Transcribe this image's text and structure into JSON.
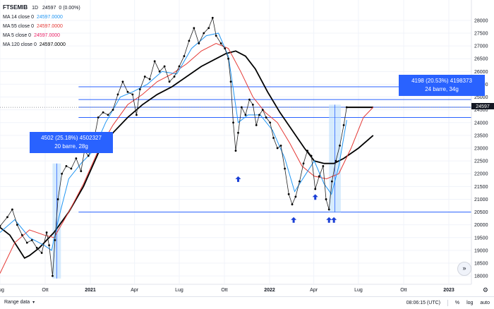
{
  "legend": {
    "symbol": "FTSEMIB",
    "interval": "1D",
    "price": "24597",
    "change": "0 (0.00%)",
    "items": [
      {
        "label": "MA 14 close 0",
        "value": "24597.0000",
        "color": "#2196f3"
      },
      {
        "label": "MA 55 close 0",
        "value": "24597.0000",
        "color": "#e53935"
      },
      {
        "label": "MA 5 close 0",
        "value": "24597.0000",
        "color": "#e91e63"
      },
      {
        "label": "MA 120 close 0",
        "value": "24597.0000",
        "color": "#000000"
      }
    ]
  },
  "measure_boxes": [
    {
      "line1": "4502 (25.18%) 4502327",
      "line2": "20 barre, 28g"
    },
    {
      "line1": "4198 (20.53%) 4198373",
      "line2": "24 barre, 34g"
    }
  ],
  "footer": {
    "range_label": "Range data",
    "time": "08:06:15 (UTC)",
    "percent": "%",
    "log": "log",
    "auto": "auto"
  },
  "chart_data": {
    "type": "line",
    "series_note_colors": {
      "price": "#000000",
      "ma14": "#2196f3",
      "ma55": "#e53935",
      "ma120": "#000000",
      "measure": "#2962ff"
    },
    "x_axis_ticks": [
      "Lug",
      "Ott",
      "2021",
      "Apr",
      "Lug",
      "Ott",
      "2022",
      "Apr",
      "Lug",
      "Ott",
      "2023"
    ],
    "y_axis_ticks": [
      "28000",
      "27500",
      "27000",
      "26500",
      "26000",
      "25500",
      "25000",
      "24500",
      "24000",
      "23500",
      "23000",
      "22500",
      "22000",
      "21500",
      "21000",
      "20500",
      "20000",
      "19500",
      "19000",
      "18500",
      "18000"
    ],
    "ylim": [
      17700,
      28300
    ],
    "x_range_days": [
      0,
      960
    ],
    "x_tick_days": [
      0,
      92,
      184,
      274,
      365,
      457,
      549,
      639,
      730,
      822,
      914
    ],
    "price": [
      [
        0,
        19950
      ],
      [
        15,
        20300
      ],
      [
        25,
        20600
      ],
      [
        35,
        20000
      ],
      [
        45,
        19600
      ],
      [
        55,
        19300
      ],
      [
        65,
        19400
      ],
      [
        75,
        19100
      ],
      [
        85,
        18900
      ],
      [
        95,
        19700
      ],
      [
        100,
        19200
      ],
      [
        107,
        18000
      ],
      [
        112,
        19400
      ],
      [
        118,
        21000
      ],
      [
        126,
        22000
      ],
      [
        135,
        22300
      ],
      [
        145,
        22200
      ],
      [
        155,
        22600
      ],
      [
        165,
        22100
      ],
      [
        172,
        22900
      ],
      [
        180,
        22700
      ],
      [
        190,
        23200
      ],
      [
        200,
        24200
      ],
      [
        210,
        24400
      ],
      [
        220,
        24300
      ],
      [
        230,
        24500
      ],
      [
        240,
        25100
      ],
      [
        250,
        25600
      ],
      [
        260,
        25200
      ],
      [
        270,
        25100
      ],
      [
        278,
        24300
      ],
      [
        285,
        25300
      ],
      [
        295,
        25800
      ],
      [
        305,
        25700
      ],
      [
        315,
        26400
      ],
      [
        325,
        26000
      ],
      [
        335,
        26200
      ],
      [
        345,
        25600
      ],
      [
        355,
        25800
      ],
      [
        365,
        26200
      ],
      [
        375,
        26600
      ],
      [
        385,
        27200
      ],
      [
        395,
        27700
      ],
      [
        405,
        27100
      ],
      [
        415,
        27500
      ],
      [
        425,
        27700
      ],
      [
        433,
        28100
      ],
      [
        440,
        27400
      ],
      [
        450,
        27100
      ],
      [
        458,
        26900
      ],
      [
        465,
        26500
      ],
      [
        470,
        25600
      ],
      [
        475,
        24000
      ],
      [
        480,
        22900
      ],
      [
        485,
        23600
      ],
      [
        492,
        24600
      ],
      [
        500,
        24300
      ],
      [
        508,
        24900
      ],
      [
        515,
        24700
      ],
      [
        522,
        23900
      ],
      [
        528,
        24300
      ],
      [
        535,
        24500
      ],
      [
        542,
        24200
      ],
      [
        550,
        24000
      ],
      [
        557,
        23400
      ],
      [
        565,
        23000
      ],
      [
        572,
        23100
      ],
      [
        580,
        22200
      ],
      [
        588,
        21200
      ],
      [
        595,
        20800
      ],
      [
        602,
        21100
      ],
      [
        610,
        21700
      ],
      [
        618,
        22400
      ],
      [
        626,
        22900
      ],
      [
        634,
        22700
      ],
      [
        642,
        21400
      ],
      [
        650,
        21900
      ],
      [
        658,
        22300
      ],
      [
        664,
        21000
      ],
      [
        670,
        20600
      ],
      [
        676,
        21700
      ],
      [
        684,
        22500
      ],
      [
        692,
        23100
      ],
      [
        700,
        23900
      ],
      [
        706,
        24600
      ]
    ],
    "ma14": [
      [
        0,
        19700
      ],
      [
        30,
        20200
      ],
      [
        60,
        19500
      ],
      [
        90,
        19200
      ],
      [
        105,
        19000
      ],
      [
        120,
        20300
      ],
      [
        140,
        21800
      ],
      [
        165,
        22400
      ],
      [
        190,
        22900
      ],
      [
        215,
        24000
      ],
      [
        245,
        25000
      ],
      [
        270,
        25200
      ],
      [
        300,
        25500
      ],
      [
        330,
        26000
      ],
      [
        360,
        25900
      ],
      [
        390,
        26900
      ],
      [
        420,
        27400
      ],
      [
        445,
        27500
      ],
      [
        465,
        26600
      ],
      [
        485,
        24000
      ],
      [
        505,
        24300
      ],
      [
        530,
        24300
      ],
      [
        555,
        23700
      ],
      [
        580,
        22600
      ],
      [
        600,
        21300
      ],
      [
        620,
        21900
      ],
      [
        640,
        22500
      ],
      [
        660,
        21600
      ],
      [
        675,
        21200
      ],
      [
        690,
        22300
      ],
      [
        706,
        24100
      ]
    ],
    "ma55": [
      [
        0,
        18100
      ],
      [
        30,
        19300
      ],
      [
        60,
        19800
      ],
      [
        90,
        19600
      ],
      [
        110,
        19500
      ],
      [
        140,
        20500
      ],
      [
        170,
        21600
      ],
      [
        200,
        22900
      ],
      [
        230,
        23900
      ],
      [
        260,
        24700
      ],
      [
        290,
        25100
      ],
      [
        320,
        25600
      ],
      [
        350,
        25900
      ],
      [
        380,
        26300
      ],
      [
        410,
        26800
      ],
      [
        440,
        27100
      ],
      [
        465,
        26900
      ],
      [
        490,
        26000
      ],
      [
        515,
        25000
      ],
      [
        540,
        24400
      ],
      [
        565,
        24000
      ],
      [
        590,
        23200
      ],
      [
        615,
        22300
      ],
      [
        640,
        21900
      ],
      [
        665,
        21800
      ],
      [
        690,
        22000
      ],
      [
        715,
        23000
      ],
      [
        740,
        24200
      ],
      [
        760,
        24600
      ]
    ],
    "ma120": [
      [
        0,
        19900
      ],
      [
        20,
        19600
      ],
      [
        40,
        19000
      ],
      [
        50,
        18700
      ],
      [
        60,
        18800
      ],
      [
        80,
        19100
      ],
      [
        110,
        19700
      ],
      [
        140,
        20500
      ],
      [
        170,
        21500
      ],
      [
        200,
        22800
      ],
      [
        230,
        23600
      ],
      [
        260,
        24200
      ],
      [
        290,
        24700
      ],
      [
        320,
        25100
      ],
      [
        350,
        25400
      ],
      [
        380,
        25800
      ],
      [
        410,
        26200
      ],
      [
        440,
        26500
      ],
      [
        460,
        26700
      ],
      [
        480,
        26800
      ],
      [
        500,
        26600
      ],
      [
        520,
        26100
      ],
      [
        545,
        25200
      ],
      [
        570,
        24400
      ],
      [
        595,
        23700
      ],
      [
        620,
        23000
      ],
      [
        640,
        22500
      ],
      [
        660,
        22400
      ],
      [
        680,
        22400
      ],
      [
        700,
        22600
      ],
      [
        730,
        23000
      ],
      [
        760,
        23500
      ]
    ],
    "horizontal_levels": [
      25400,
      24900,
      24600,
      24200,
      20500
    ],
    "measure_ranges": [
      {
        "day_start": 107,
        "day_end": 124,
        "low": 17900,
        "high": 22400
      },
      {
        "day_start": 670,
        "day_end": 694,
        "low": 20500,
        "high": 24700
      }
    ],
    "arrow_days": [
      {
        "day": 485,
        "price": 21900
      },
      {
        "day": 598,
        "price": 20300
      },
      {
        "day": 642,
        "price": 21200
      },
      {
        "day": 670,
        "price": 20300
      },
      {
        "day": 680,
        "price": 20300
      }
    ]
  }
}
